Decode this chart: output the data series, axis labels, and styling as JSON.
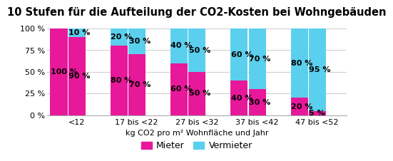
{
  "title": "10 Stufen für die Aufteilung der CO2-Kosten bei Wohngebäuden",
  "xlabel": "kg CO2 pro m² Wohnfläche und Jahr",
  "group_labels": [
    "<12",
    "17 bis <22",
    "27 bis <32",
    "37 bis <42",
    "47 bis <52"
  ],
  "mieter_values": [
    100,
    90,
    80,
    70,
    60,
    50,
    40,
    30,
    20,
    5
  ],
  "vermieter_values": [
    0,
    10,
    20,
    30,
    40,
    50,
    60,
    70,
    80,
    95
  ],
  "mieter_color": "#e8189a",
  "vermieter_color": "#5bcfee",
  "bar_width": 0.38,
  "background_color": "#ffffff",
  "grid_color": "#cccccc",
  "title_fontsize": 10.5,
  "label_fontsize": 8,
  "tick_fontsize": 8,
  "legend_fontsize": 9,
  "yticks": [
    0,
    25,
    50,
    75,
    100
  ],
  "ytick_labels": [
    "0 %",
    "25 %",
    "50 %",
    "75 %",
    "100 %"
  ]
}
